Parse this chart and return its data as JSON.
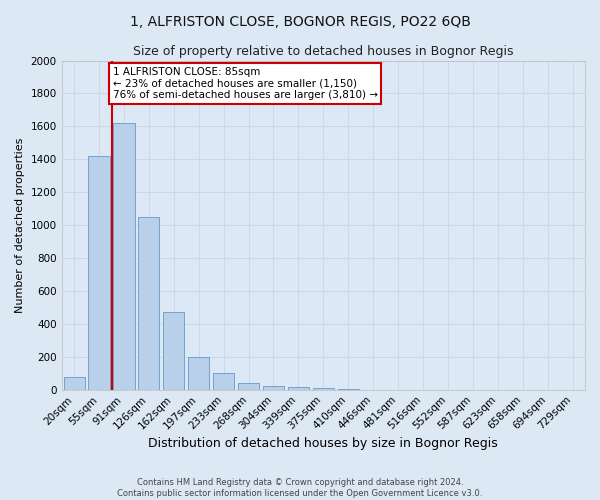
{
  "title": "1, ALFRISTON CLOSE, BOGNOR REGIS, PO22 6QB",
  "subtitle": "Size of property relative to detached houses in Bognor Regis",
  "xlabel": "Distribution of detached houses by size in Bognor Regis",
  "ylabel": "Number of detached properties",
  "bar_labels": [
    "20sqm",
    "55sqm",
    "91sqm",
    "126sqm",
    "162sqm",
    "197sqm",
    "233sqm",
    "268sqm",
    "304sqm",
    "339sqm",
    "375sqm",
    "410sqm",
    "446sqm",
    "481sqm",
    "516sqm",
    "552sqm",
    "587sqm",
    "623sqm",
    "658sqm",
    "694sqm",
    "729sqm"
  ],
  "bar_values": [
    75,
    1420,
    1620,
    1050,
    475,
    200,
    100,
    40,
    25,
    15,
    10,
    5,
    0,
    0,
    0,
    0,
    0,
    0,
    0,
    0,
    0
  ],
  "bar_color": "#b8d0ea",
  "bar_edge_color": "#6699cc",
  "property_line_x": 2.5,
  "annotation_text": "1 ALFRISTON CLOSE: 85sqm\n← 23% of detached houses are smaller (1,150)\n76% of semi-detached houses are larger (3,810) →",
  "annotation_box_color": "#ffffff",
  "annotation_box_edge": "#cc0000",
  "property_line_color": "#cc0000",
  "ylim": [
    0,
    2000
  ],
  "yticks": [
    0,
    200,
    400,
    600,
    800,
    1000,
    1200,
    1400,
    1600,
    1800,
    2000
  ],
  "grid_color": "#c8d4e8",
  "background_color": "#dde8f5",
  "footer_line1": "Contains HM Land Registry data © Crown copyright and database right 2024.",
  "footer_line2": "Contains public sector information licensed under the Open Government Licence v3.0.",
  "title_fontsize": 10,
  "subtitle_fontsize": 9,
  "xlabel_fontsize": 9,
  "ylabel_fontsize": 8,
  "tick_fontsize": 7.5,
  "annotation_fontsize": 7.5,
  "footer_fontsize": 6
}
